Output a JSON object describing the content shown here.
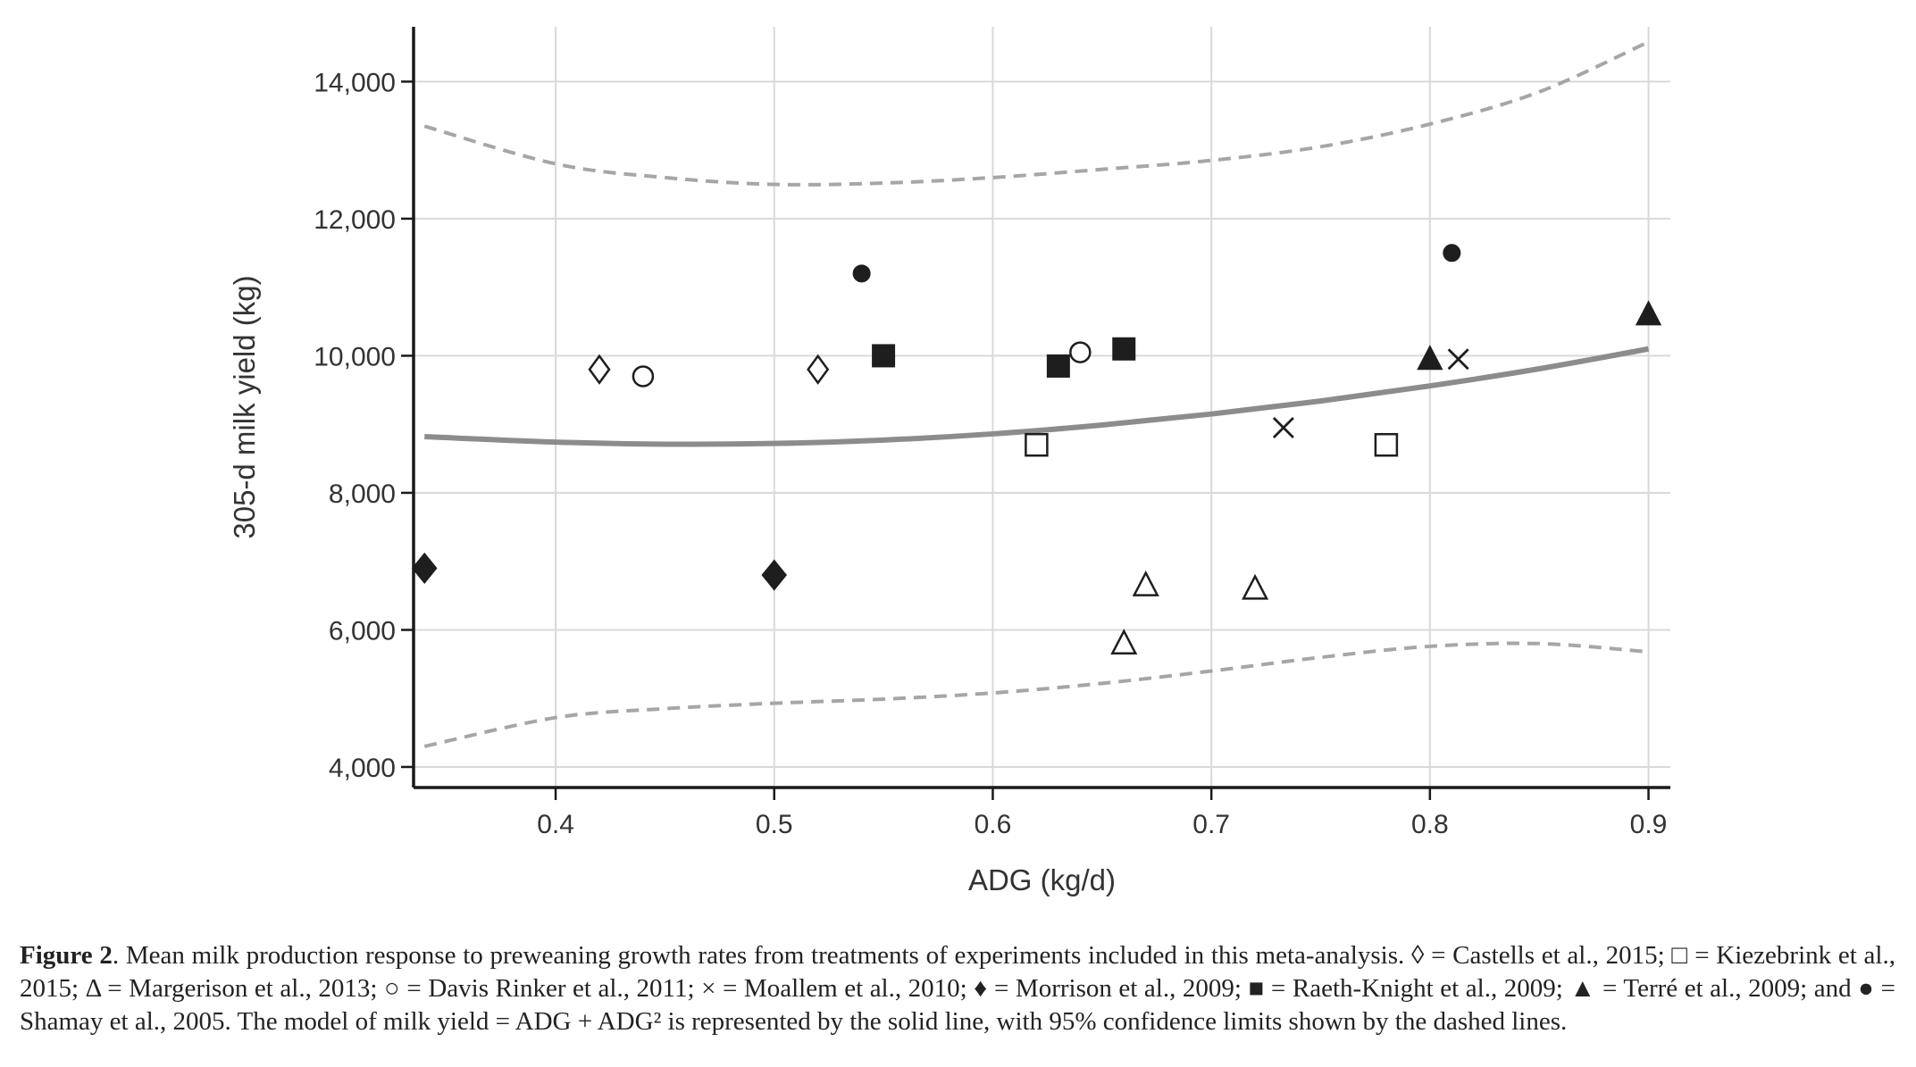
{
  "chart_data": {
    "type": "scatter",
    "xlabel": "ADG (kg/d)",
    "ylabel": "305-d milk yield (kg)",
    "xlim": [
      0.335,
      0.91
    ],
    "ylim": [
      3700,
      14800
    ],
    "x_ticks": [
      0.4,
      0.5,
      0.6,
      0.7,
      0.8,
      0.9
    ],
    "x_tick_labels": [
      "0.4",
      "0.5",
      "0.6",
      "0.7",
      "0.8",
      "0.9"
    ],
    "y_ticks": [
      4000,
      6000,
      8000,
      10000,
      12000,
      14000
    ],
    "y_tick_labels": [
      "4,000",
      "6,000",
      "8,000",
      "10,000",
      "12,000",
      "14,000"
    ],
    "grid": true,
    "series": [
      {
        "name": "Castells et al., 2015",
        "marker": "diamond-open",
        "points": [
          [
            0.42,
            9800
          ],
          [
            0.52,
            9800
          ]
        ]
      },
      {
        "name": "Kiezebrink et al., 2015",
        "marker": "square-open",
        "points": [
          [
            0.62,
            8700
          ],
          [
            0.78,
            8700
          ]
        ]
      },
      {
        "name": "Margerison et al., 2013",
        "marker": "triangle-open",
        "points": [
          [
            0.66,
            5800
          ],
          [
            0.67,
            6650
          ],
          [
            0.72,
            6600
          ]
        ]
      },
      {
        "name": "Davis Rinker et al., 2011",
        "marker": "circle-open",
        "points": [
          [
            0.44,
            9700
          ],
          [
            0.64,
            10050
          ]
        ]
      },
      {
        "name": "Moallem et al., 2010",
        "marker": "cross",
        "points": [
          [
            0.733,
            8950
          ],
          [
            0.813,
            9950
          ]
        ]
      },
      {
        "name": "Morrison et al., 2009",
        "marker": "diamond-filled",
        "points": [
          [
            0.34,
            6900
          ],
          [
            0.5,
            6800
          ]
        ]
      },
      {
        "name": "Raeth-Knight et al., 2009",
        "marker": "square-filled",
        "points": [
          [
            0.55,
            10000
          ],
          [
            0.63,
            9850
          ],
          [
            0.66,
            10100
          ]
        ]
      },
      {
        "name": "Terré et al., 2009",
        "marker": "triangle-filled",
        "points": [
          [
            0.8,
            9950
          ],
          [
            0.9,
            10600
          ]
        ]
      },
      {
        "name": "Shamay et al., 2005",
        "marker": "circle-filled",
        "points": [
          [
            0.54,
            11200
          ],
          [
            0.81,
            11500
          ]
        ]
      }
    ],
    "model_line": {
      "style": "solid",
      "x": [
        0.34,
        0.4,
        0.45,
        0.5,
        0.55,
        0.6,
        0.65,
        0.7,
        0.75,
        0.8,
        0.85,
        0.9
      ],
      "y": [
        8820,
        8740,
        8710,
        8720,
        8770,
        8860,
        8990,
        9150,
        9340,
        9560,
        9810,
        10100
      ]
    },
    "upper_confidence": {
      "style": "dashed",
      "x": [
        0.34,
        0.4,
        0.45,
        0.5,
        0.55,
        0.6,
        0.65,
        0.7,
        0.75,
        0.8,
        0.85,
        0.9
      ],
      "y": [
        13350,
        12800,
        12600,
        12500,
        12520,
        12600,
        12720,
        12850,
        13050,
        13380,
        13850,
        14580
      ]
    },
    "lower_confidence": {
      "style": "dashed",
      "x": [
        0.34,
        0.4,
        0.45,
        0.5,
        0.55,
        0.6,
        0.65,
        0.7,
        0.75,
        0.8,
        0.85,
        0.9
      ],
      "y": [
        4300,
        4720,
        4850,
        4930,
        4990,
        5080,
        5220,
        5400,
        5600,
        5760,
        5800,
        5680
      ]
    },
    "colors": {
      "markers": "#1e1e1e",
      "model_line": "#8c8c8c",
      "confidence_lines": "#a6a6a6",
      "grid": "#d9d9d9",
      "axes": "#1a1a1a"
    }
  },
  "caption": {
    "label": "Figure 2",
    "text": ". Mean milk production response to preweaning growth rates from treatments of experiments included in this meta-analysis. ◊ = Castells et al., 2015; □ = Kiezebrink et al., 2015; Δ = Margerison et al., 2013; ○ = Davis Rinker et al., 2011; × = Moallem et al., 2010; ♦ = Morrison et al., 2009; ■ = Raeth-Knight et al., 2009; ▲ = Terré et al., 2009; and ● = Shamay et al., 2005. The model of milk yield = ADG + ADG² is represented by the solid line, with 95% confidence limits shown by the dashed lines."
  }
}
